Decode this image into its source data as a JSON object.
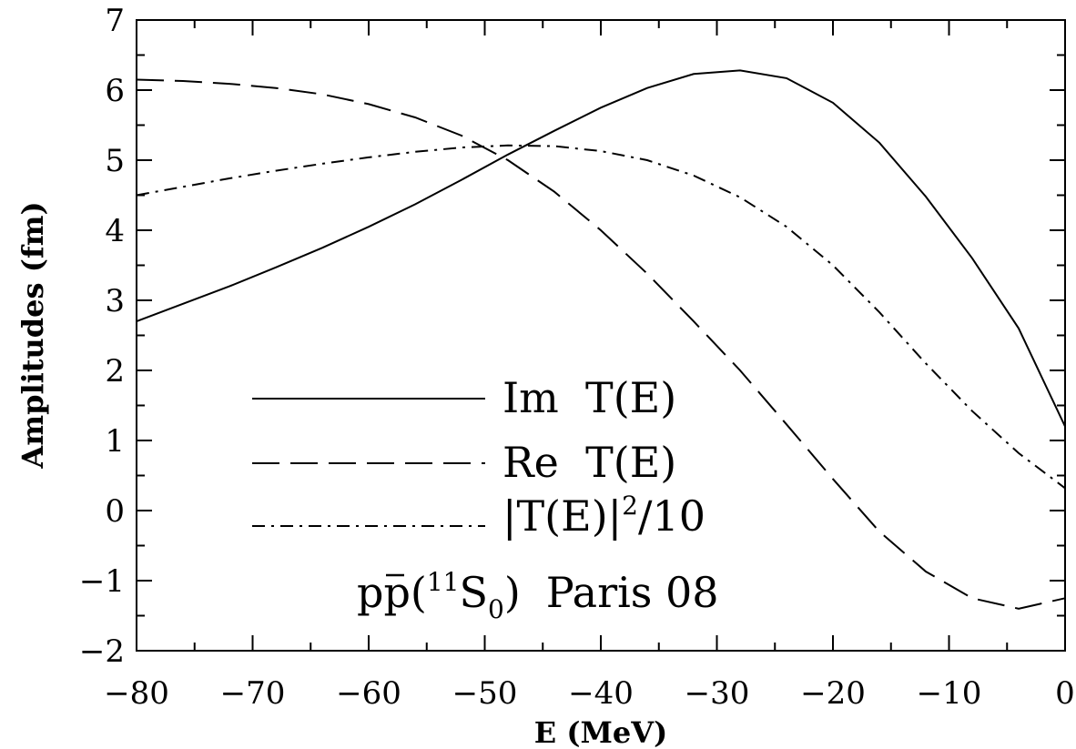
{
  "chart_data": {
    "type": "line",
    "xlabel": "E (MeV)",
    "ylabel": "Amplitudes (fm)",
    "xlim": [
      -80,
      0
    ],
    "ylim": [
      -2,
      7
    ],
    "xticks": [
      -80,
      -70,
      -60,
      -50,
      -40,
      -30,
      -20,
      -10,
      0
    ],
    "xtick_labels": [
      "−80",
      "−70",
      "−60",
      "−50",
      "−40",
      "−30",
      "−20",
      "−10",
      "0"
    ],
    "yticks": [
      -2,
      -1,
      0,
      1,
      2,
      3,
      4,
      5,
      6,
      7
    ],
    "ytick_labels": [
      "−2",
      "−1",
      "0",
      "1",
      "2",
      "3",
      "4",
      "5",
      "6",
      "7"
    ],
    "grid": false,
    "legend_position": "bottom-left",
    "annotation": {
      "p": "p",
      "open": "(",
      "sup": "11",
      "S": "S",
      "sub": "0",
      "close": ")",
      "rest": "Paris 08"
    },
    "series": [
      {
        "name": "Im  T(E)",
        "style": "solid",
        "x": [
          -80,
          -76,
          -72,
          -68,
          -64,
          -60,
          -56,
          -52,
          -48,
          -44,
          -40,
          -36,
          -32,
          -28,
          -24,
          -20,
          -16,
          -12,
          -8,
          -4,
          0
        ],
        "y": [
          2.7,
          2.95,
          3.2,
          3.47,
          3.75,
          4.05,
          4.37,
          4.72,
          5.08,
          5.42,
          5.75,
          6.03,
          6.23,
          6.28,
          6.17,
          5.82,
          5.25,
          4.48,
          3.6,
          2.6,
          1.2
        ]
      },
      {
        "name": "Re  T(E)",
        "style": "dashed",
        "x": [
          -80,
          -76,
          -72,
          -68,
          -64,
          -60,
          -56,
          -52,
          -48,
          -44,
          -40,
          -36,
          -32,
          -28,
          -24,
          -20,
          -16,
          -12,
          -8,
          -4,
          0
        ],
        "y": [
          6.15,
          6.13,
          6.09,
          6.03,
          5.94,
          5.8,
          5.61,
          5.35,
          5.0,
          4.55,
          4.0,
          3.38,
          2.7,
          2.0,
          1.23,
          0.45,
          -0.3,
          -0.87,
          -1.25,
          -1.4,
          -1.25
        ]
      },
      {
        "name": "|T(E)|",
        "name_sup": "2",
        "name_rest": "/10",
        "style": "dashdot",
        "x": [
          -80,
          -76,
          -72,
          -68,
          -64,
          -60,
          -56,
          -52,
          -48,
          -44,
          -40,
          -36,
          -32,
          -28,
          -24,
          -20,
          -16,
          -12,
          -8,
          -4,
          0
        ],
        "y": [
          4.5,
          4.62,
          4.74,
          4.85,
          4.95,
          5.04,
          5.12,
          5.18,
          5.21,
          5.2,
          5.13,
          5.0,
          4.78,
          4.47,
          4.05,
          3.5,
          2.83,
          2.1,
          1.42,
          0.82,
          0.32
        ]
      }
    ]
  }
}
